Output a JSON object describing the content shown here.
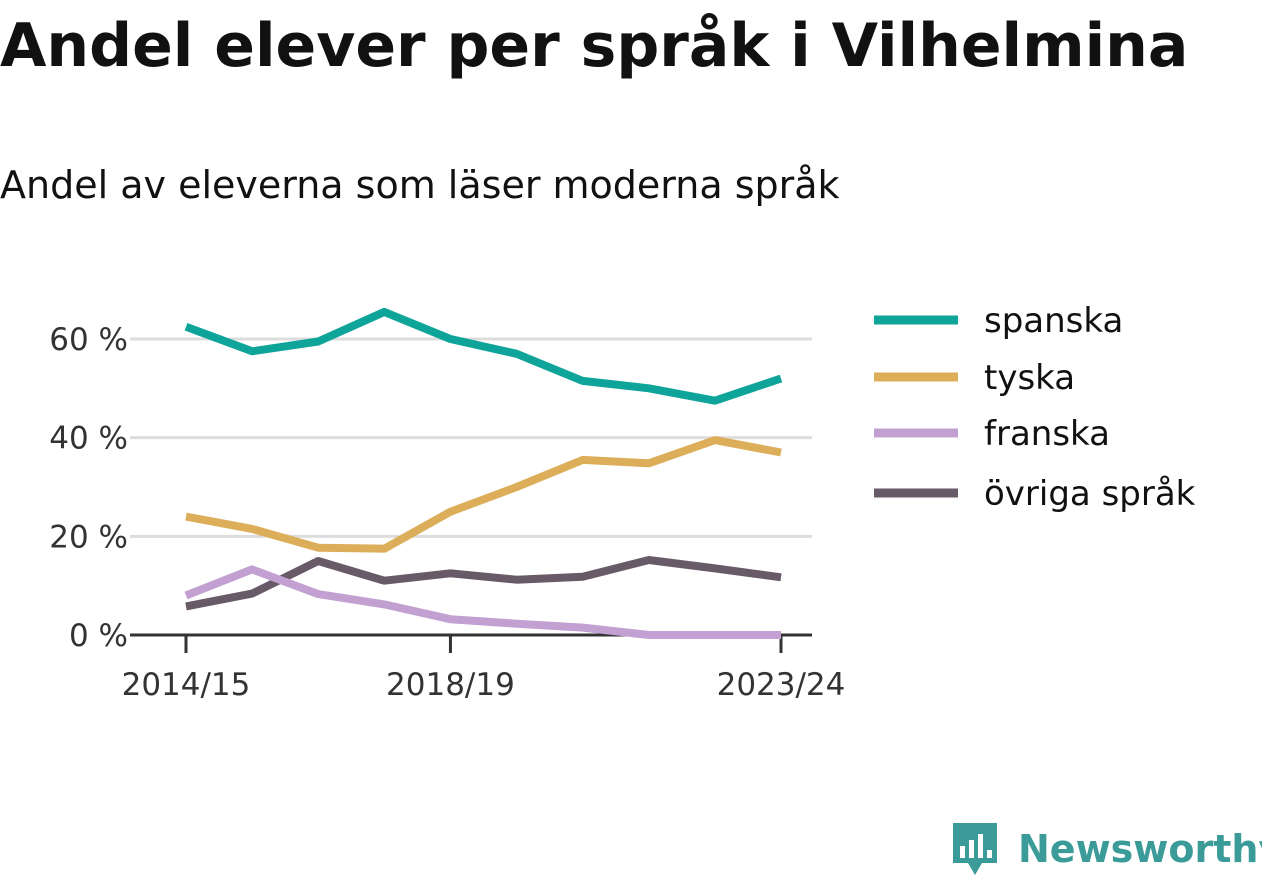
{
  "title": "Andel elever per språk i Vilhelmina",
  "subtitle": "Andel av eleverna som läser moderna språk",
  "brand": {
    "name": "Newsworthy",
    "color": "#3a9b98",
    "icon": "newsworthy-logo-icon"
  },
  "chart_data": {
    "type": "line",
    "title": "Andel elever per språk i Vilhelmina",
    "subtitle": "Andel av eleverna som läser moderna språk",
    "x": [
      "2014/15",
      "2015/16",
      "2016/17",
      "2017/18",
      "2018/19",
      "2019/20",
      "2020/21",
      "2021/22",
      "2022/23",
      "2023/24"
    ],
    "x_tick_labels": [
      "2014/15",
      "2018/19",
      "2023/24"
    ],
    "y_ticks": [
      0,
      20,
      40,
      60
    ],
    "y_tick_labels": [
      "0 %",
      "20 %",
      "40 %",
      "60 %"
    ],
    "ylim": [
      0,
      70
    ],
    "grid": true,
    "legend_position": "right",
    "series": [
      {
        "name": "spanska",
        "color": "#0fa49a",
        "values": [
          62.5,
          57.5,
          59.5,
          65.5,
          60.0,
          57.0,
          51.5,
          50.0,
          47.5,
          52.0
        ]
      },
      {
        "name": "tyska",
        "color": "#dcae5a",
        "values": [
          24.0,
          21.5,
          17.7,
          17.5,
          25.0,
          30.0,
          35.5,
          34.8,
          39.5,
          37.0
        ]
      },
      {
        "name": "franska",
        "color": "#c2a0d1",
        "values": [
          8.0,
          13.3,
          8.3,
          6.2,
          3.2,
          2.3,
          1.5,
          0.0,
          0.0,
          0.0
        ]
      },
      {
        "name": "övriga språk",
        "color": "#685a67",
        "values": [
          5.8,
          8.4,
          15.0,
          11.0,
          12.5,
          11.2,
          11.8,
          15.2,
          13.5,
          11.7
        ]
      }
    ]
  }
}
